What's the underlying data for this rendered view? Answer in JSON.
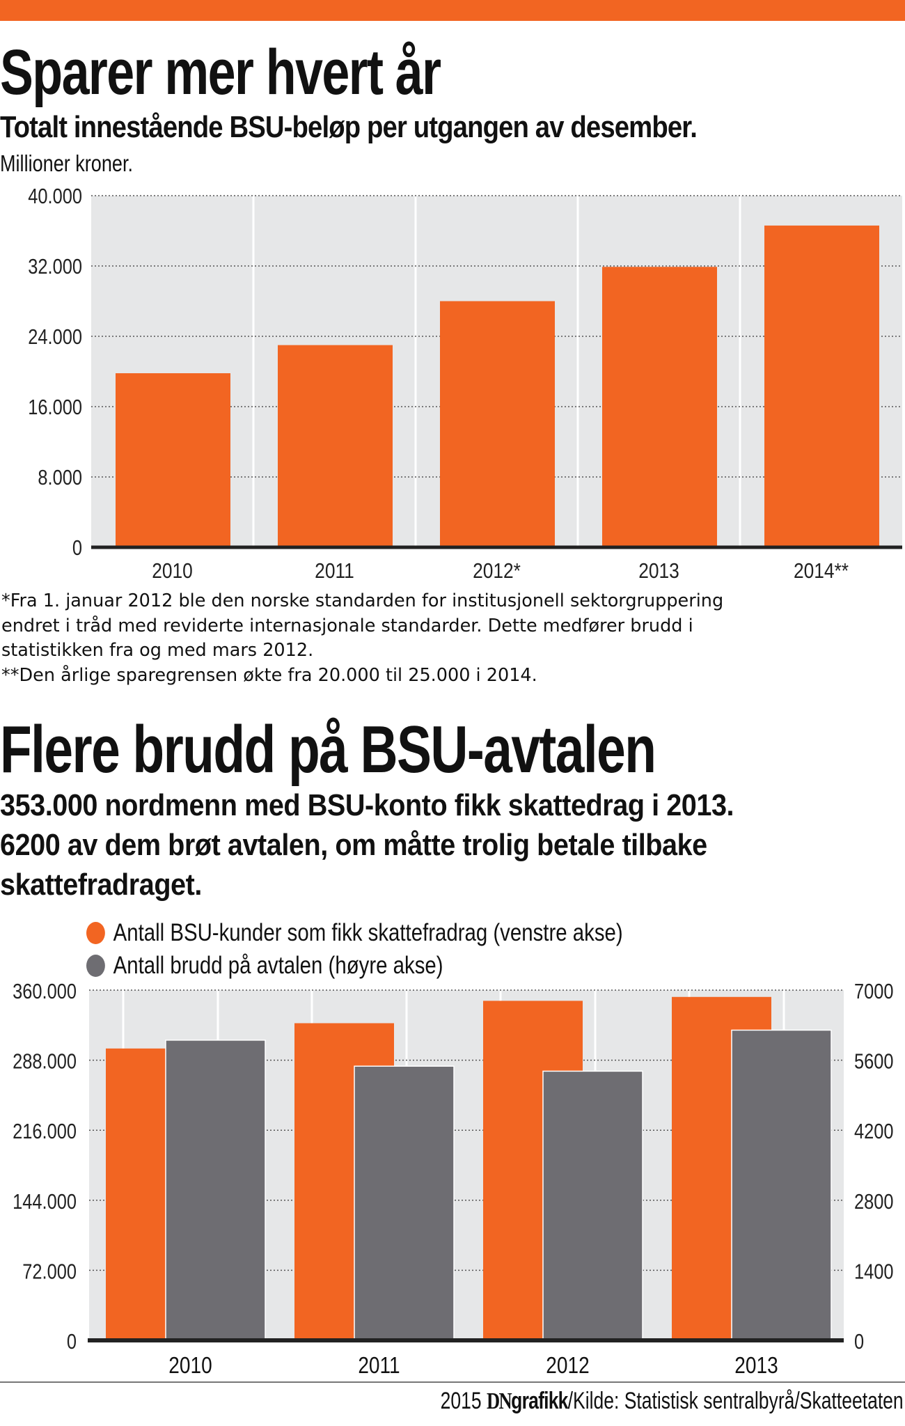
{
  "colors": {
    "accent": "#f26522",
    "gray": "#6e6d72",
    "plot_bg": "#e6e7e8"
  },
  "section1": {
    "title": "Sparer mer hvert år",
    "subtitle": "Totalt innestående BSU-beløp per utgangen av desember.",
    "unit": "Millioner kroner.",
    "notes": [
      "*Fra 1. januar 2012 ble den norske standarden for institusjonell sektorgruppering",
      "endret i tråd med reviderte internasjonale standarder. Dette medfører brudd i",
      "statistikken fra og med mars 2012.",
      "**Den årlige sparegrensen økte fra 20.000 til 25.000 i 2014."
    ]
  },
  "section2": {
    "title": "Flere brudd på BSU-avtalen",
    "subtitle": [
      "353.000 nordmenn med BSU-konto fikk skattedrag i 2013.",
      "6200 av dem brøt avtalen, om måtte trolig betale tilbake",
      "skattefradraget."
    ]
  },
  "source": {
    "year": "2015",
    "brand": "DN",
    "brand2": "grafikk",
    "text": "/Kilde: Statistisk sentralbyrå/Skatteetaten"
  },
  "chart_data": [
    {
      "type": "bar",
      "title": "Totalt innestående BSU-beløp per utgangen av desember.",
      "ylabel": "Millioner kroner",
      "categories": [
        "2010",
        "2011",
        "2012*",
        "2013",
        "2014**"
      ],
      "values": [
        19800,
        23000,
        28000,
        31900,
        36600
      ],
      "ylim": [
        0,
        40000
      ],
      "yticks": [
        0,
        8000,
        16000,
        24000,
        32000,
        40000
      ],
      "ytick_labels": [
        "0",
        "8.000",
        "16.000",
        "24.000",
        "32.000",
        "40.000"
      ],
      "grid": true
    },
    {
      "type": "bar",
      "categories": [
        "2010",
        "2011",
        "2012",
        "2013"
      ],
      "series": [
        {
          "name": "Antall BSU-kunder som fikk skattefradrag (venstre akse)",
          "axis": "left",
          "values": [
            300000,
            326000,
            349000,
            353000
          ]
        },
        {
          "name": "Antall brudd på avtalen (høyre akse)",
          "axis": "right",
          "values": [
            6000,
            5480,
            5380,
            6200
          ]
        }
      ],
      "ylim_left": [
        0,
        360000
      ],
      "ylim_right": [
        0,
        7000
      ],
      "yticks_left_labels": [
        "0",
        "72.000",
        "144.000",
        "216.000",
        "288.000",
        "360.000"
      ],
      "yticks_right_labels": [
        "0",
        "1400",
        "2800",
        "4200",
        "5600",
        "7000"
      ],
      "legend": "top-left",
      "grid": true
    }
  ]
}
